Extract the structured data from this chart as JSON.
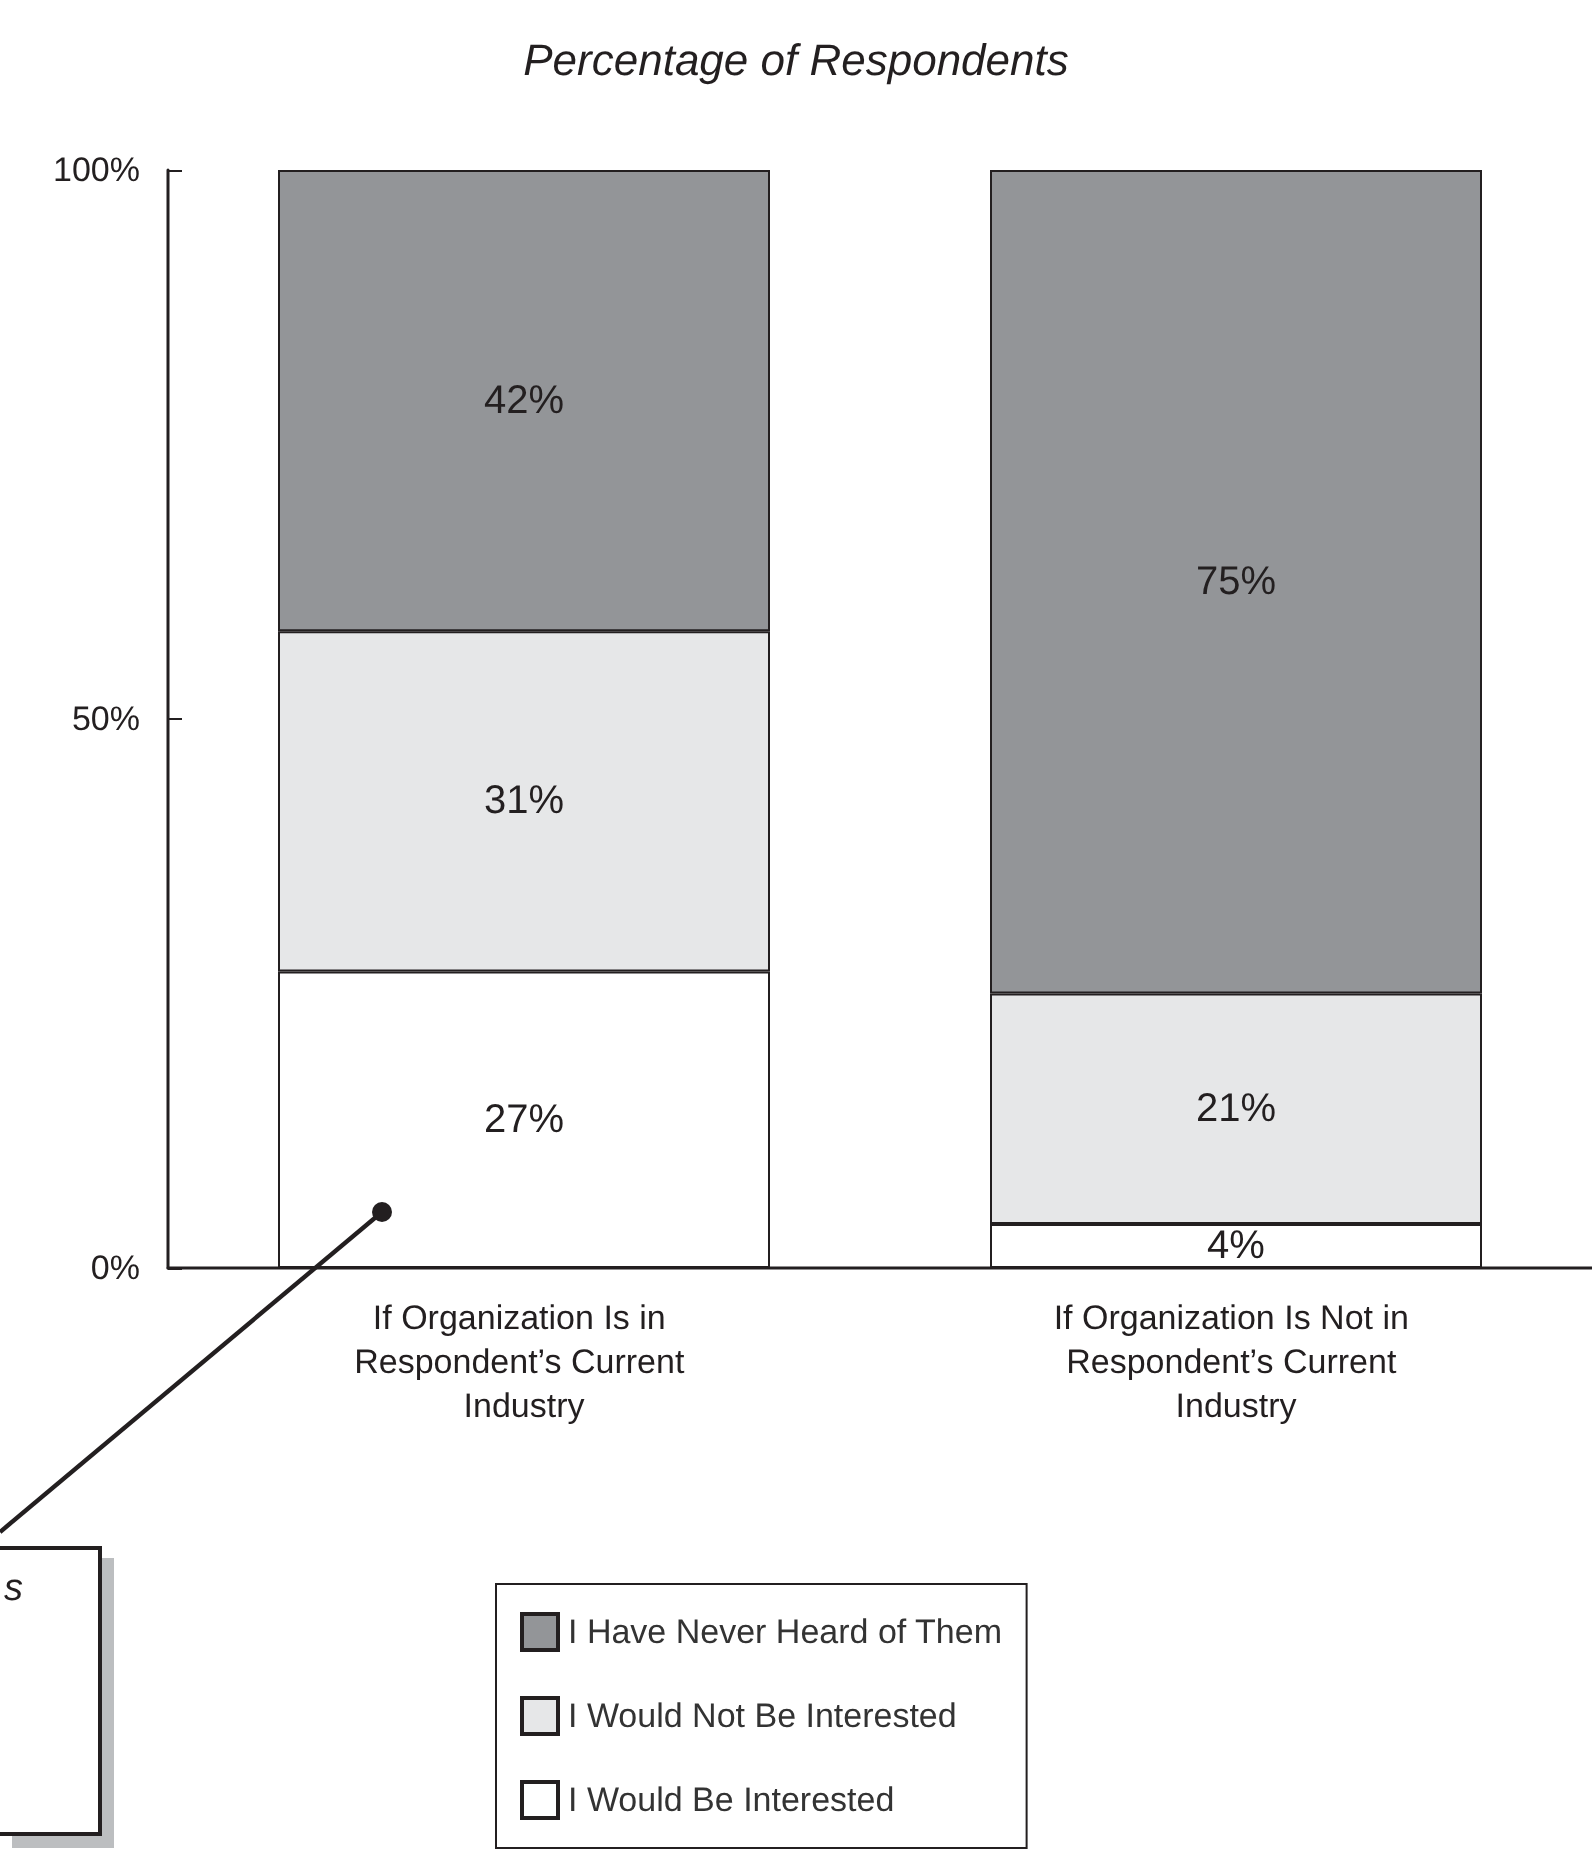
{
  "chart_data": {
    "type": "bar",
    "title": "Percentage of Respondents",
    "categories": [
      "If Organization Is in Respondent’s Current Industry",
      "If Organization Is Not in Respondent’s Current Industry"
    ],
    "stacked": true,
    "series": [
      {
        "name": "I Would Be Interested",
        "color": "#ffffff",
        "values": [
          27,
          4
        ],
        "value_labels": [
          "27%",
          "4%"
        ]
      },
      {
        "name": "I Would Not Be Interested",
        "color": "#e6e7e8",
        "values": [
          31,
          21
        ],
        "value_labels": [
          "31%",
          "21%"
        ]
      },
      {
        "name": "I Have Never Heard of Them",
        "color": "#939598",
        "values": [
          42,
          75
        ],
        "value_labels": [
          "42%",
          "75%"
        ]
      }
    ],
    "ylim": [
      0,
      100
    ],
    "yticks": [
      {
        "value": 0,
        "label": "0%"
      },
      {
        "value": 50,
        "label": "50%"
      },
      {
        "value": 100,
        "label": "100%"
      }
    ],
    "grid": false,
    "legend": "bottom",
    "annotations": [
      "s"
    ]
  }
}
